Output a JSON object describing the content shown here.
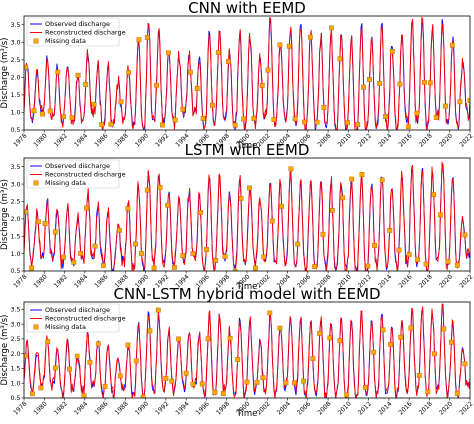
{
  "chart_data": [
    {
      "type": "line",
      "title": "CNN with EEMD",
      "xlabel": "Time",
      "ylabel": "Discharge (m³/s)",
      "xlim": [
        1978,
        2022
      ],
      "ylim": [
        0.5,
        3.75
      ],
      "x_ticks": [
        "1978",
        "1980",
        "1982",
        "1984",
        "1986",
        "1988",
        "1990",
        "1992",
        "1994",
        "1996",
        "1998",
        "2000",
        "2002",
        "2004",
        "2006",
        "2008",
        "2010",
        "2012",
        "2014",
        "2016",
        "2018",
        "2020",
        "2022"
      ],
      "y_ticks": [
        "0.5",
        "1.0",
        "1.5",
        "2.0",
        "2.5",
        "3.0",
        "3.5"
      ],
      "legend": {
        "placement": "top-left",
        "entries": [
          "Observed discharge",
          "Reconstructed discharge",
          "Missing data"
        ]
      },
      "series": [
        {
          "name": "Observed discharge",
          "color": "#0000ff",
          "seed": 11,
          "peaks": [
            2.5,
            2.1,
            2.6,
            2.3,
            2.4,
            2.0,
            2.7,
            2.4,
            2.3,
            1.9,
            2.3,
            3.0,
            3.5,
            3.3,
            2.8,
            2.6,
            2.7,
            2.7,
            3.4,
            3.3,
            2.8,
            3.3,
            3.2,
            2.5,
            3.7,
            3.0,
            3.4,
            3.6,
            3.3,
            3.2,
            3.3,
            3.3,
            3.2,
            3.5,
            3.1,
            3.5,
            3.0,
            3.2,
            3.6,
            3.6,
            3.4,
            3.6,
            3.1,
            2.5
          ],
          "troughs": [
            0.8,
            1.0,
            0.9,
            0.7,
            0.7,
            0.8,
            0.9,
            0.7,
            0.6,
            0.8,
            0.6,
            0.5,
            0.7,
            0.8,
            0.7,
            0.9,
            0.9,
            0.6,
            0.6,
            0.8,
            0.6,
            0.6,
            0.7,
            0.8,
            0.7,
            0.8,
            0.7,
            0.6,
            0.6,
            0.6,
            0.5,
            0.6,
            0.4,
            0.5,
            0.6,
            0.6,
            0.6,
            0.7,
            0.7,
            0.6,
            0.8,
            0.7,
            0.6,
            0.9
          ]
        },
        {
          "name": "Reconstructed discharge",
          "color": "#ff0000"
        },
        {
          "name": "Missing data",
          "color": "#ffa500",
          "marker": "square"
        }
      ]
    },
    {
      "type": "line",
      "title": "LSTM with EEMD",
      "xlabel": "Time",
      "ylabel": "Discharge (m³/s)",
      "xlim": [
        1978,
        2022
      ],
      "ylim": [
        0.5,
        3.75
      ],
      "x_ticks": [
        "1978",
        "1980",
        "1982",
        "1984",
        "1986",
        "1988",
        "1990",
        "1992",
        "1994",
        "1996",
        "1998",
        "2000",
        "2002",
        "2004",
        "2006",
        "2008",
        "2010",
        "2012",
        "2014",
        "2016",
        "2018",
        "2020",
        "2022"
      ],
      "y_ticks": [
        "0.5",
        "1.0",
        "1.5",
        "2.0",
        "2.5",
        "3.0",
        "3.5"
      ],
      "legend": {
        "placement": "top-left",
        "entries": [
          "Observed discharge",
          "Reconstructed discharge",
          "Missing data"
        ]
      },
      "series": [
        {
          "name": "Observed discharge",
          "color": "#0000ff",
          "seed": 23,
          "peaks": [
            2.4,
            2.2,
            2.6,
            2.3,
            2.4,
            2.0,
            2.8,
            2.4,
            2.3,
            1.9,
            2.4,
            3.0,
            3.4,
            3.3,
            2.8,
            2.6,
            2.8,
            2.7,
            3.3,
            3.2,
            2.8,
            3.2,
            3.0,
            2.6,
            3.1,
            3.0,
            3.3,
            3.0,
            3.1,
            3.0,
            3.0,
            3.1,
            3.0,
            3.2,
            3.0,
            3.3,
            3.0,
            3.2,
            3.4,
            3.4,
            3.4,
            3.6,
            3.2,
            2.0
          ],
          "troughs": [
            0.8,
            0.9,
            0.9,
            0.7,
            0.7,
            0.8,
            0.9,
            0.7,
            0.6,
            0.8,
            0.6,
            0.6,
            0.7,
            0.8,
            0.7,
            0.8,
            0.9,
            0.6,
            0.6,
            0.8,
            0.6,
            0.7,
            0.7,
            0.8,
            0.7,
            0.8,
            0.7,
            0.6,
            0.6,
            0.6,
            0.6,
            0.6,
            0.6,
            0.5,
            0.6,
            0.6,
            0.6,
            0.7,
            0.7,
            0.6,
            0.8,
            0.7,
            0.6,
            0.9
          ]
        },
        {
          "name": "Reconstructed discharge",
          "color": "#ff0000"
        },
        {
          "name": "Missing data",
          "color": "#ffa500",
          "marker": "square"
        }
      ]
    },
    {
      "type": "line",
      "title": "CNN-LSTM hybrid model with EEMD",
      "xlabel": "Time",
      "ylabel": "Discharge (m³/s)",
      "xlim": [
        1978,
        2022
      ],
      "ylim": [
        0.5,
        3.75
      ],
      "x_ticks": [
        "1978",
        "1980",
        "1982",
        "1984",
        "1986",
        "1988",
        "1990",
        "1992",
        "1994",
        "1996",
        "1998",
        "2000",
        "2002",
        "2004",
        "2006",
        "2008",
        "2010",
        "2012",
        "2014",
        "2016",
        "2018",
        "2020",
        "2022"
      ],
      "y_ticks": [
        "0.5",
        "1.0",
        "1.5",
        "2.0",
        "2.5",
        "3.0",
        "3.5"
      ],
      "legend": {
        "placement": "top-left",
        "entries": [
          "Observed discharge",
          "Reconstructed discharge",
          "Missing data"
        ]
      },
      "series": [
        {
          "name": "Observed discharge",
          "color": "#0000ff",
          "seed": 37,
          "peaks": [
            2.5,
            2.1,
            2.6,
            2.3,
            2.4,
            2.0,
            2.7,
            2.4,
            2.3,
            1.9,
            2.3,
            3.0,
            3.4,
            3.3,
            2.8,
            2.6,
            2.7,
            2.7,
            3.3,
            3.3,
            2.8,
            3.3,
            3.2,
            2.5,
            3.4,
            3.0,
            3.3,
            3.2,
            3.1,
            3.1,
            3.2,
            3.2,
            3.1,
            3.3,
            3.1,
            3.4,
            3.0,
            3.2,
            3.5,
            3.5,
            3.4,
            3.6,
            3.1,
            2.2
          ],
          "troughs": [
            0.8,
            1.0,
            0.9,
            0.7,
            0.7,
            0.8,
            0.9,
            0.7,
            0.6,
            0.8,
            0.6,
            0.6,
            0.7,
            0.8,
            0.7,
            0.8,
            0.9,
            0.6,
            0.6,
            0.8,
            0.6,
            0.7,
            0.7,
            0.8,
            0.7,
            0.8,
            0.7,
            0.6,
            0.6,
            0.6,
            0.6,
            0.6,
            0.5,
            0.6,
            0.6,
            0.6,
            0.6,
            0.7,
            0.7,
            0.6,
            0.8,
            0.7,
            0.6,
            0.9
          ]
        },
        {
          "name": "Reconstructed discharge",
          "color": "#ff0000"
        },
        {
          "name": "Missing data",
          "color": "#ffa500",
          "marker": "square"
        }
      ]
    }
  ]
}
